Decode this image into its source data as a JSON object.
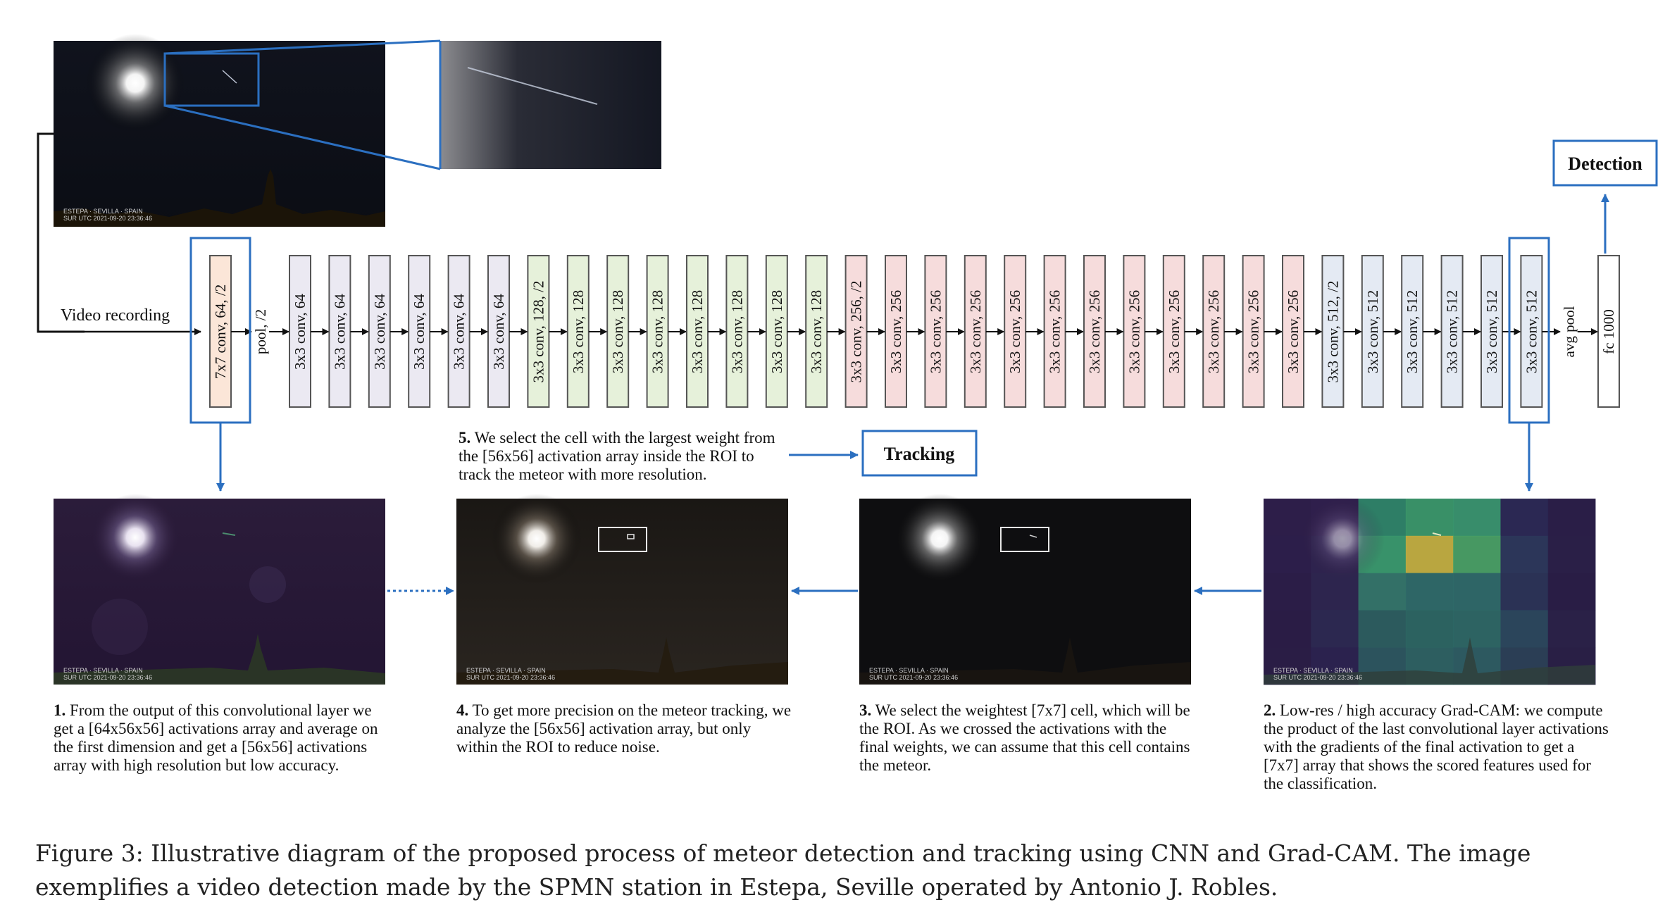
{
  "network": {
    "input_label": "Video recording",
    "output_label": "Detection",
    "tracking_label": "Tracking",
    "layers": [
      {
        "label": "7x7 conv, 64, /2",
        "kind": "conv",
        "color": "#fbe6d8",
        "highlight": true
      },
      {
        "label": "pool, /2",
        "kind": "text"
      },
      {
        "label": "3x3 conv, 64",
        "kind": "conv",
        "color": "#ebe9f2"
      },
      {
        "label": "3x3 conv, 64",
        "kind": "conv",
        "color": "#ebe9f2"
      },
      {
        "label": "3x3 conv, 64",
        "kind": "conv",
        "color": "#ebe9f2"
      },
      {
        "label": "3x3 conv, 64",
        "kind": "conv",
        "color": "#ebe9f2"
      },
      {
        "label": "3x3 conv, 64",
        "kind": "conv",
        "color": "#ebe9f2"
      },
      {
        "label": "3x3 conv, 64",
        "kind": "conv",
        "color": "#ebe9f2"
      },
      {
        "label": "3x3 conv, 128, /2",
        "kind": "conv",
        "color": "#e6f1da"
      },
      {
        "label": "3x3 conv, 128",
        "kind": "conv",
        "color": "#e6f1da"
      },
      {
        "label": "3x3 conv, 128",
        "kind": "conv",
        "color": "#e6f1da"
      },
      {
        "label": "3x3 conv, 128",
        "kind": "conv",
        "color": "#e6f1da"
      },
      {
        "label": "3x3 conv, 128",
        "kind": "conv",
        "color": "#e6f1da"
      },
      {
        "label": "3x3 conv, 128",
        "kind": "conv",
        "color": "#e6f1da"
      },
      {
        "label": "3x3 conv, 128",
        "kind": "conv",
        "color": "#e6f1da"
      },
      {
        "label": "3x3 conv, 128",
        "kind": "conv",
        "color": "#e6f1da"
      },
      {
        "label": "3x3 conv, 256, /2",
        "kind": "conv",
        "color": "#f6dcdc"
      },
      {
        "label": "3x3 conv, 256",
        "kind": "conv",
        "color": "#f6dcdc"
      },
      {
        "label": "3x3 conv, 256",
        "kind": "conv",
        "color": "#f6dcdc"
      },
      {
        "label": "3x3 conv, 256",
        "kind": "conv",
        "color": "#f6dcdc"
      },
      {
        "label": "3x3 conv, 256",
        "kind": "conv",
        "color": "#f6dcdc"
      },
      {
        "label": "3x3 conv, 256",
        "kind": "conv",
        "color": "#f6dcdc"
      },
      {
        "label": "3x3 conv, 256",
        "kind": "conv",
        "color": "#f6dcdc"
      },
      {
        "label": "3x3 conv, 256",
        "kind": "conv",
        "color": "#f6dcdc"
      },
      {
        "label": "3x3 conv, 256",
        "kind": "conv",
        "color": "#f6dcdc"
      },
      {
        "label": "3x3 conv, 256",
        "kind": "conv",
        "color": "#f6dcdc"
      },
      {
        "label": "3x3 conv, 256",
        "kind": "conv",
        "color": "#f6dcdc"
      },
      {
        "label": "3x3 conv, 256",
        "kind": "conv",
        "color": "#f6dcdc"
      },
      {
        "label": "3x3 conv, 512, /2",
        "kind": "conv",
        "color": "#e4eaf3"
      },
      {
        "label": "3x3 conv, 512",
        "kind": "conv",
        "color": "#e4eaf3"
      },
      {
        "label": "3x3 conv, 512",
        "kind": "conv",
        "color": "#e4eaf3"
      },
      {
        "label": "3x3 conv, 512",
        "kind": "conv",
        "color": "#e4eaf3"
      },
      {
        "label": "3x3 conv, 512",
        "kind": "conv",
        "color": "#e4eaf3"
      },
      {
        "label": "3x3 conv, 512",
        "kind": "conv",
        "color": "#e4eaf3",
        "highlight": true
      },
      {
        "label": "avg pool",
        "kind": "text"
      },
      {
        "label": "fc 1000",
        "kind": "conv",
        "color": "#ffffff"
      }
    ]
  },
  "frame_overlay": {
    "line1": "ESTEPA · SEVILLA · SPAIN",
    "line2": "SUR      UTC 2021-09-20 23:36:46"
  },
  "steps": {
    "step1": {
      "num": "1.",
      "text": "From the output of this convolutional layer we get a [64x56x56] activations array and average on the first dimension and get a [56x56] activations array with high resolution but low accuracy."
    },
    "step2": {
      "num": "2.",
      "text": "Low-res / high accuracy Grad-CAM: we compute the product of the last convolutional layer activations with the gradients of the final activation to get a [7x7] array that shows the scored features used for the classification."
    },
    "step3": {
      "num": "3.",
      "text": "We select the weightest [7x7] cell, which will be the ROI. As we crossed the activations with the final weights, we can assume that this cell contains the meteor."
    },
    "step4": {
      "num": "4.",
      "text": "To get more precision on the meteor tracking, we analyze the [56x56] activation array, but only within the ROI to reduce noise."
    },
    "step5": {
      "num": "5.",
      "text": "We select the cell with the largest weight from the [56x56] activation array inside the ROI to track the meteor with more resolution."
    }
  },
  "caption": "Figure 3: Illustrative diagram of the proposed process of meteor detection and tracking using CNN and Grad-CAM. The image exemplifies a video detection made by the SPMN station in Estepa, Seville operated by Antonio J. Robles.",
  "colors": {
    "accent": "#2b6fc0",
    "arrow": "#111111"
  }
}
